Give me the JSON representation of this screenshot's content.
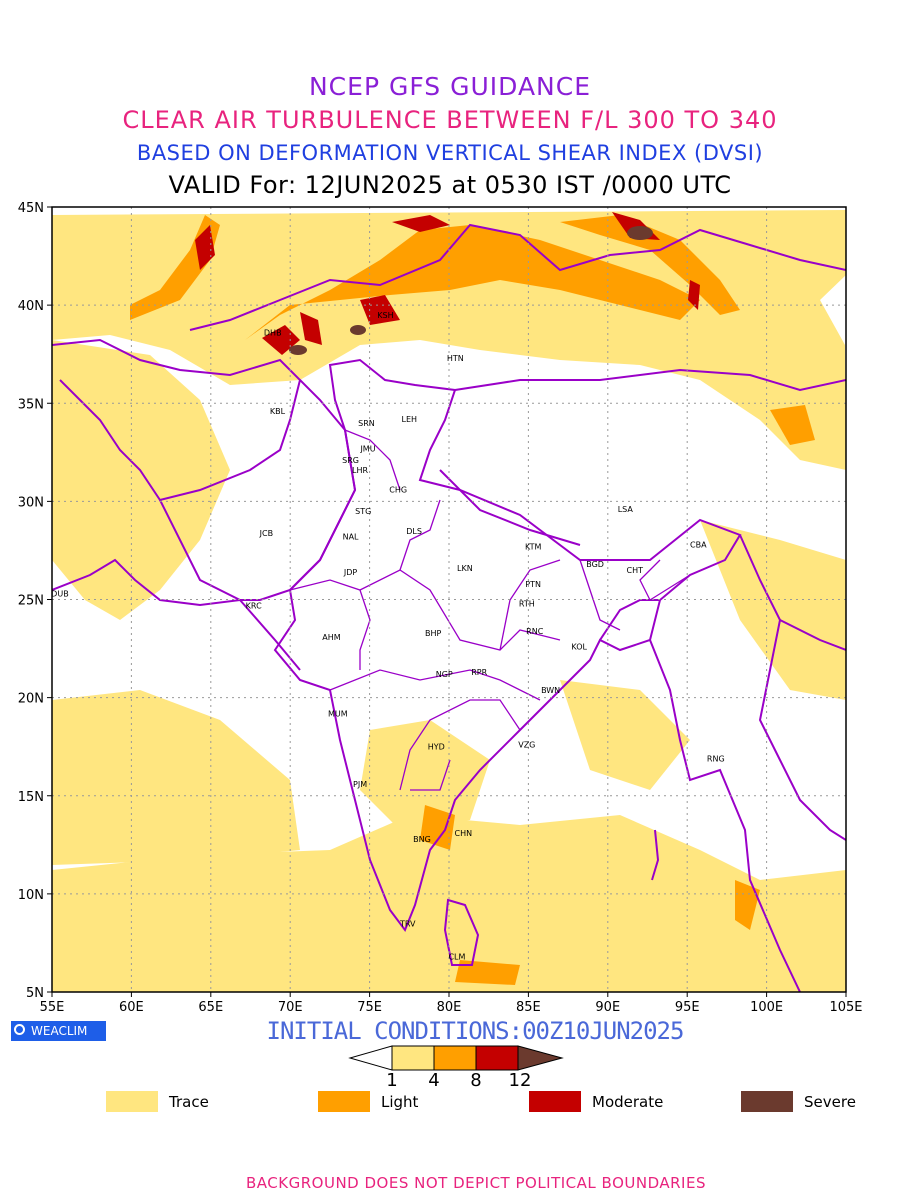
{
  "header": {
    "title1": "NCEP GFS GUIDANCE",
    "title2": "CLEAR AIR TURBULENCE BETWEEN F/L 300 TO 340",
    "title3": "BASED ON DEFORMATION VERTICAL SHEAR INDEX (DVSI)",
    "valid": "VALID For: 12JUN2025 at 0530 IST /0000 UTC"
  },
  "map": {
    "lon_range": [
      55,
      105
    ],
    "lat_range": [
      5,
      45
    ],
    "lon_ticks": [
      "55E",
      "60E",
      "65E",
      "70E",
      "75E",
      "80E",
      "85E",
      "90E",
      "95E",
      "100E",
      "105E"
    ],
    "lat_ticks": [
      "45N",
      "40N",
      "35N",
      "30N",
      "25N",
      "20N",
      "15N",
      "10N",
      "5N"
    ],
    "grid": true,
    "stations": [
      {
        "code": "DHB",
        "lon": 68.9,
        "lat": 38.6
      },
      {
        "code": "KSH",
        "lon": 76.0,
        "lat": 39.5
      },
      {
        "code": "HTN",
        "lon": 80.4,
        "lat": 37.3
      },
      {
        "code": "KBL",
        "lon": 69.2,
        "lat": 34.6
      },
      {
        "code": "SRN",
        "lon": 74.8,
        "lat": 34.0
      },
      {
        "code": "LEH",
        "lon": 77.5,
        "lat": 34.2
      },
      {
        "code": "JMU",
        "lon": 74.9,
        "lat": 32.7
      },
      {
        "code": "SRG",
        "lon": 73.8,
        "lat": 32.1
      },
      {
        "code": "LHR",
        "lon": 74.4,
        "lat": 31.6
      },
      {
        "code": "CHG",
        "lon": 76.8,
        "lat": 30.6
      },
      {
        "code": "LSA",
        "lon": 91.1,
        "lat": 29.6
      },
      {
        "code": "STG",
        "lon": 74.6,
        "lat": 29.5
      },
      {
        "code": "JCB",
        "lon": 68.5,
        "lat": 28.4
      },
      {
        "code": "NAL",
        "lon": 73.8,
        "lat": 28.2
      },
      {
        "code": "DLS",
        "lon": 77.8,
        "lat": 28.5
      },
      {
        "code": "KTM",
        "lon": 85.3,
        "lat": 27.7
      },
      {
        "code": "CBA",
        "lon": 95.7,
        "lat": 27.8
      },
      {
        "code": "BGD",
        "lon": 89.2,
        "lat": 26.8
      },
      {
        "code": "CHT",
        "lon": 91.7,
        "lat": 26.5
      },
      {
        "code": "LKN",
        "lon": 81.0,
        "lat": 26.6
      },
      {
        "code": "JDP",
        "lon": 73.8,
        "lat": 26.4
      },
      {
        "code": "PTN",
        "lon": 85.3,
        "lat": 25.8
      },
      {
        "code": "DUB",
        "lon": 55.5,
        "lat": 25.3
      },
      {
        "code": "KRC",
        "lon": 67.7,
        "lat": 24.7
      },
      {
        "code": "RTH",
        "lon": 84.9,
        "lat": 24.8
      },
      {
        "code": "BHP",
        "lon": 79.0,
        "lat": 23.3
      },
      {
        "code": "AHM",
        "lon": 72.6,
        "lat": 23.1
      },
      {
        "code": "RNC",
        "lon": 85.4,
        "lat": 23.4
      },
      {
        "code": "KOL",
        "lon": 88.2,
        "lat": 22.6
      },
      {
        "code": "NGP",
        "lon": 79.7,
        "lat": 21.2
      },
      {
        "code": "RPR",
        "lon": 81.9,
        "lat": 21.3
      },
      {
        "code": "BWN",
        "lon": 86.4,
        "lat": 20.4
      },
      {
        "code": "MUM",
        "lon": 73.0,
        "lat": 19.2
      },
      {
        "code": "VZG",
        "lon": 84.9,
        "lat": 17.6
      },
      {
        "code": "HYD",
        "lon": 79.2,
        "lat": 17.5
      },
      {
        "code": "RNG",
        "lon": 96.8,
        "lat": 16.9
      },
      {
        "code": "PJM",
        "lon": 74.4,
        "lat": 15.6
      },
      {
        "code": "CHN",
        "lon": 80.9,
        "lat": 13.1
      },
      {
        "code": "BNG",
        "lon": 78.3,
        "lat": 12.8
      },
      {
        "code": "TRV",
        "lon": 77.4,
        "lat": 8.5
      },
      {
        "code": "CLM",
        "lon": 80.5,
        "lat": 6.8
      }
    ]
  },
  "footer": {
    "initial": "INITIAL CONDITIONS:00Z10JUN2025",
    "badge": "WEACLIM",
    "colorbar_labels": [
      "1",
      "4",
      "8",
      "12"
    ],
    "legend": [
      {
        "label": "Trace",
        "color": "#ffe680"
      },
      {
        "label": "Light",
        "color": "#ff9f00"
      },
      {
        "label": "Moderate",
        "color": "#c40000"
      },
      {
        "label": "Severe",
        "color": "#6b3a2e"
      }
    ],
    "note": "BACKGROUND DOES NOT DEPICT POLITICAL BOUNDARIES"
  },
  "colors": {
    "trace": "#ffe680",
    "light": "#ff9f00",
    "moderate": "#c40000",
    "severe": "#6b3a2e",
    "boundary": "#9a00c8"
  }
}
